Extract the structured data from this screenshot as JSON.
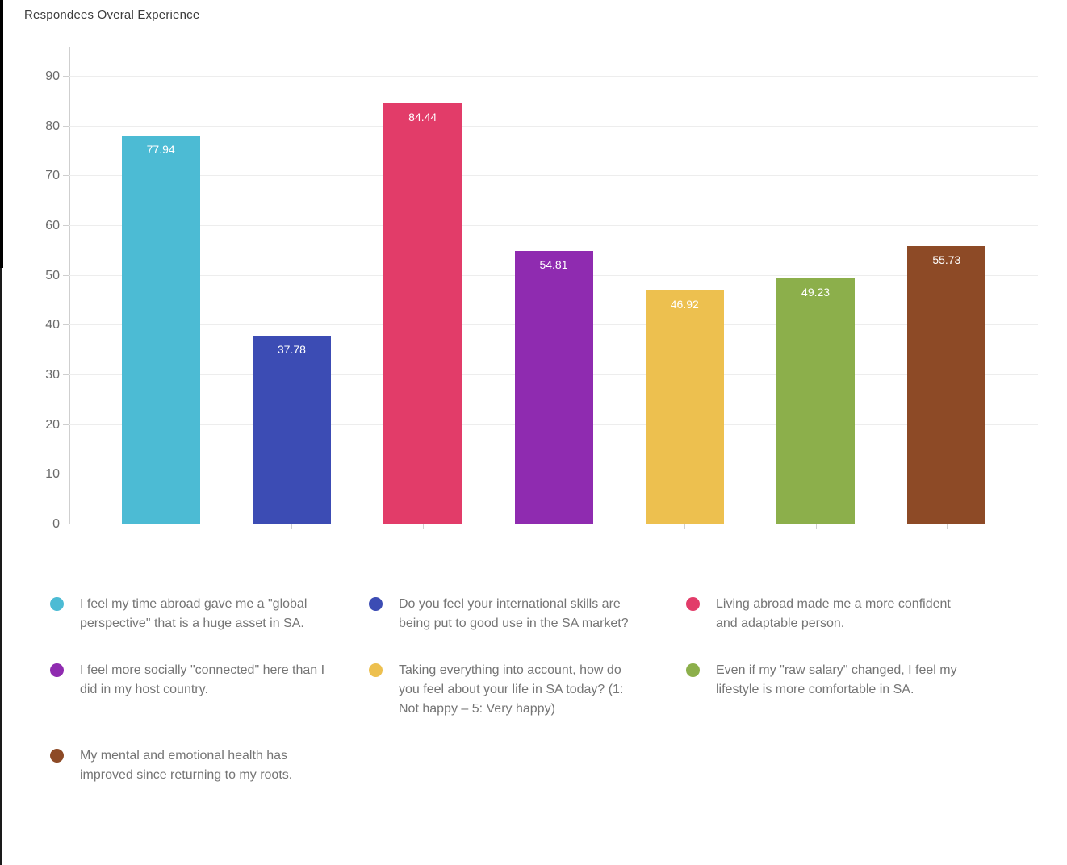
{
  "page": {
    "background": "#ffffff"
  },
  "chart_data": {
    "type": "bar",
    "title": "Respondees Overal Experience",
    "categories": [
      "I feel my time abroad gave me a \"global perspective\" that is a huge asset in SA.",
      "Do you feel your international skills are being put to good use in the SA market?",
      "Living abroad made me a more confident and adaptable person.",
      "I feel more socially \"connected\" here than I did in my host country.",
      "Taking everything into account, how do you feel about your life in SA today? (1: Not happy – 5: Very happy)",
      "Even if my \"raw salary\" changed, I feel my lifestyle is more comfortable in SA.",
      "My mental and emotional health has improved since returning to my roots."
    ],
    "values": [
      77.94,
      37.78,
      84.44,
      54.81,
      46.92,
      49.23,
      55.73
    ],
    "value_labels": [
      "77.94",
      "37.78",
      "84.44",
      "54.81",
      "46.92",
      "49.23",
      "55.73"
    ],
    "colors": [
      "#4CBBD4",
      "#3C4CB4",
      "#E23C69",
      "#8F2BB0",
      "#EDC04F",
      "#8CAF4B",
      "#8D4A26"
    ],
    "y_ticks": [
      0,
      10,
      20,
      30,
      40,
      50,
      60,
      70,
      80,
      90
    ],
    "ylim": [
      0,
      96
    ],
    "xlabel": "",
    "ylabel": "",
    "grid": "horizontal",
    "legend_position": "bottom",
    "value_label_style": "white, inside top of bar"
  }
}
